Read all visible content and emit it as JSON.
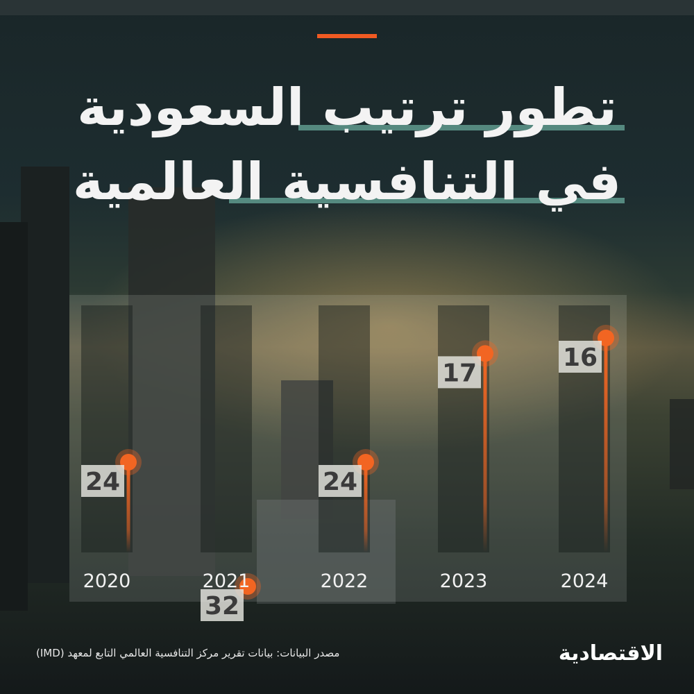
{
  "title": {
    "line1": "تطور ترتيب السعودية",
    "line2": "في التنافسية العالمية"
  },
  "colors": {
    "accent": "#f05a22",
    "marker": "#f26522",
    "label_bg": "#e6e6e0",
    "label_text": "#3b3b3b",
    "year_text": "#f2f2f2",
    "highlight": "#5f9a8e"
  },
  "chart_data": {
    "type": "bar",
    "categories": [
      "2020",
      "2021",
      "2022",
      "2023",
      "2024"
    ],
    "values": [
      24,
      32,
      24,
      17,
      16
    ],
    "title": "تطور ترتيب السعودية في التنافسية العالمية",
    "xlabel": "",
    "ylabel": "",
    "y_inverted": true,
    "ylim": [
      0,
      40
    ],
    "grid": false,
    "legend": "none",
    "marker": "lollipop-circle"
  },
  "source": "مصدر البيانات: بيانات تقرير مركز التنافسية العالمي التابع لمعهد (IMD)",
  "logo": "الاقتصادية"
}
